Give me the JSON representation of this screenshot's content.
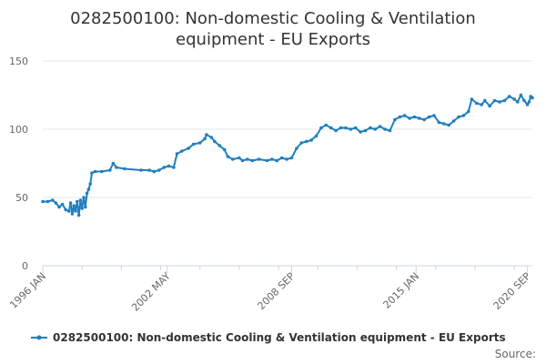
{
  "chart_data": {
    "type": "line",
    "title_line1": "0282500100: Non-domestic Cooling & Ventilation",
    "title_line2": "equipment - EU Exports",
    "xlabel": "",
    "ylabel": "",
    "ylim": [
      0,
      150
    ],
    "yticks": [
      0,
      50,
      100,
      150
    ],
    "x_start": "1996-01",
    "x_end": "2020-12",
    "xtick_labels": [
      {
        "label": "1996 JAN",
        "date": "1996-01"
      },
      {
        "label": "2002 MAY",
        "date": "2002-05"
      },
      {
        "label": "2008 SEP",
        "date": "2008-09"
      },
      {
        "label": "2015 JAN",
        "date": "2015-01"
      },
      {
        "label": "2020 SEP",
        "date": "2020-09"
      }
    ],
    "grid": true,
    "legend_position": "bottom",
    "series": [
      {
        "name": "0282500100: Non-domestic Cooling & Ventilation equipment - EU Exports",
        "color": "#1f7fbf",
        "points": [
          [
            "1996-01",
            47
          ],
          [
            "1996-04",
            47
          ],
          [
            "1996-07",
            48
          ],
          [
            "1996-09",
            46
          ],
          [
            "1996-11",
            43
          ],
          [
            "1997-01",
            45
          ],
          [
            "1997-03",
            41
          ],
          [
            "1997-05",
            40
          ],
          [
            "1997-06",
            46
          ],
          [
            "1997-07",
            38
          ],
          [
            "1997-08",
            44
          ],
          [
            "1997-09",
            40
          ],
          [
            "1997-10",
            47
          ],
          [
            "1997-11",
            37
          ],
          [
            "1997-12",
            48
          ],
          [
            "1998-01",
            42
          ],
          [
            "1998-02",
            50
          ],
          [
            "1998-03",
            43
          ],
          [
            "1998-04",
            53
          ],
          [
            "1998-05",
            56
          ],
          [
            "1998-06",
            60
          ],
          [
            "1998-07",
            68
          ],
          [
            "1998-09",
            69
          ],
          [
            "1999-01",
            69
          ],
          [
            "1999-06",
            70
          ],
          [
            "1999-08",
            75
          ],
          [
            "1999-10",
            72
          ],
          [
            "2000-03",
            71
          ],
          [
            "2001-01",
            70
          ],
          [
            "2001-06",
            70
          ],
          [
            "2001-09",
            69
          ],
          [
            "2001-12",
            70
          ],
          [
            "2002-03",
            72
          ],
          [
            "2002-06",
            73
          ],
          [
            "2002-09",
            72
          ],
          [
            "2002-11",
            82
          ],
          [
            "2003-02",
            84
          ],
          [
            "2003-06",
            86
          ],
          [
            "2003-09",
            89
          ],
          [
            "2004-01",
            90
          ],
          [
            "2004-04",
            93
          ],
          [
            "2004-05",
            96
          ],
          [
            "2004-08",
            94
          ],
          [
            "2004-10",
            91
          ],
          [
            "2005-01",
            88
          ],
          [
            "2005-04",
            85
          ],
          [
            "2005-06",
            80
          ],
          [
            "2005-09",
            78
          ],
          [
            "2006-01",
            79
          ],
          [
            "2006-03",
            77
          ],
          [
            "2006-06",
            78
          ],
          [
            "2006-09",
            77
          ],
          [
            "2007-01",
            78
          ],
          [
            "2007-06",
            77
          ],
          [
            "2007-09",
            78
          ],
          [
            "2007-12",
            77
          ],
          [
            "2008-03",
            79
          ],
          [
            "2008-06",
            78
          ],
          [
            "2008-09",
            79
          ],
          [
            "2008-12",
            86
          ],
          [
            "2009-03",
            90
          ],
          [
            "2009-06",
            91
          ],
          [
            "2009-09",
            92
          ],
          [
            "2009-12",
            95
          ],
          [
            "2010-03",
            101
          ],
          [
            "2010-06",
            103
          ],
          [
            "2010-09",
            101
          ],
          [
            "2010-12",
            99
          ],
          [
            "2011-03",
            101
          ],
          [
            "2011-06",
            101
          ],
          [
            "2011-09",
            100
          ],
          [
            "2011-12",
            101
          ],
          [
            "2012-03",
            98
          ],
          [
            "2012-06",
            99
          ],
          [
            "2012-09",
            101
          ],
          [
            "2012-12",
            100
          ],
          [
            "2013-03",
            102
          ],
          [
            "2013-06",
            100
          ],
          [
            "2013-09",
            99
          ],
          [
            "2013-12",
            107
          ],
          [
            "2014-03",
            109
          ],
          [
            "2014-06",
            110
          ],
          [
            "2014-09",
            108
          ],
          [
            "2014-12",
            109
          ],
          [
            "2015-03",
            108
          ],
          [
            "2015-06",
            107
          ],
          [
            "2015-09",
            109
          ],
          [
            "2015-12",
            110
          ],
          [
            "2016-03",
            105
          ],
          [
            "2016-06",
            104
          ],
          [
            "2016-09",
            103
          ],
          [
            "2016-12",
            106
          ],
          [
            "2017-03",
            109
          ],
          [
            "2017-06",
            110
          ],
          [
            "2017-09",
            113
          ],
          [
            "2017-11",
            122
          ],
          [
            "2018-02",
            119
          ],
          [
            "2018-05",
            118
          ],
          [
            "2018-07",
            121
          ],
          [
            "2018-10",
            117
          ],
          [
            "2019-01",
            121
          ],
          [
            "2019-04",
            120
          ],
          [
            "2019-07",
            121
          ],
          [
            "2019-10",
            124
          ],
          [
            "2020-01",
            122
          ],
          [
            "2020-03",
            120
          ],
          [
            "2020-05",
            125
          ],
          [
            "2020-07",
            121
          ],
          [
            "2020-09",
            118
          ],
          [
            "2020-10",
            120
          ],
          [
            "2020-11",
            124
          ],
          [
            "2020-12",
            123
          ]
        ]
      }
    ],
    "source_label": "Source:"
  }
}
